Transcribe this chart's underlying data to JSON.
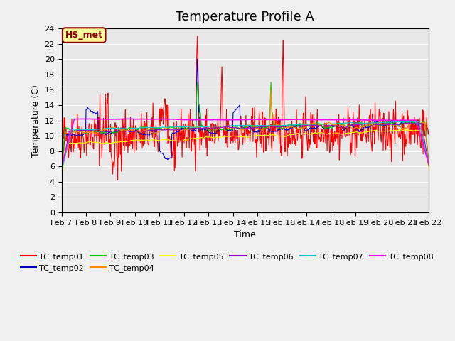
{
  "title": "Temperature Profile A",
  "xlabel": "Time",
  "ylabel": "Temperature (C)",
  "ylim": [
    0,
    24
  ],
  "yticks": [
    0,
    2,
    4,
    6,
    8,
    10,
    12,
    14,
    16,
    18,
    20,
    22,
    24
  ],
  "date_labels": [
    "Feb 7",
    "Feb 8",
    "Feb 9",
    "Feb 10",
    "Feb 11",
    "Feb 12",
    "Feb 13",
    "Feb 14",
    "Feb 15",
    "Feb 16",
    "Feb 17",
    "Feb 18",
    "Feb 19",
    "Feb 20",
    "Feb 21",
    "Feb 22"
  ],
  "annotation_text": "HS_met",
  "annotation_color": "#8B0000",
  "annotation_bg": "#FFFF99",
  "bg_color": "#E8E8E8",
  "series_colors": {
    "TC_temp01": "#FF0000",
    "TC_temp02": "#0000CD",
    "TC_temp03": "#00CC00",
    "TC_temp04": "#FF8C00",
    "TC_temp05": "#FFFF00",
    "TC_temp06": "#9400D3",
    "TC_temp07": "#00CCCC",
    "TC_temp08": "#FF00FF"
  },
  "title_fontsize": 13,
  "axis_fontsize": 9,
  "tick_fontsize": 8,
  "legend_fontsize": 8
}
